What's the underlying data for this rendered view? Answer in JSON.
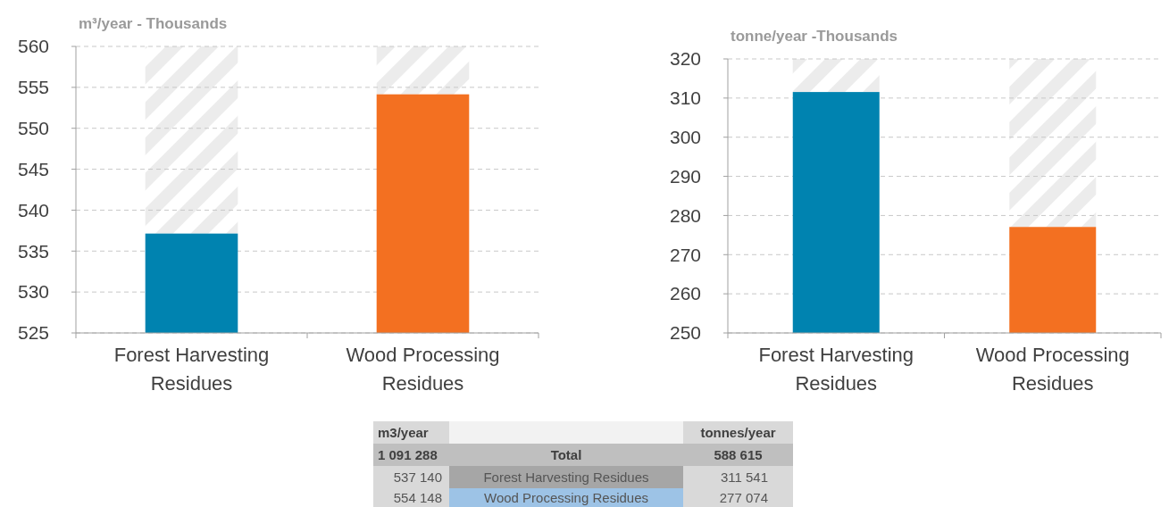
{
  "chart_data": [
    {
      "type": "bar",
      "ylabel": "m³/year - Thousands",
      "categories": [
        "Forest Harvesting Residues",
        "Wood Processing Residues"
      ],
      "grid": "y",
      "ylim": [
        525,
        560
      ],
      "yticks": [
        525,
        530,
        535,
        540,
        545,
        550,
        555,
        560
      ],
      "series": [
        {
          "colors": [
            "#0083b0",
            "#f37021"
          ],
          "values": [
            537.14,
            554.148
          ]
        }
      ]
    },
    {
      "type": "bar",
      "ylabel": "tonne/year -Thousands",
      "categories": [
        "Forest Harvesting Residues",
        "Wood Processing Residues"
      ],
      "grid": "y",
      "ylim": [
        250,
        320
      ],
      "yticks": [
        250,
        260,
        270,
        280,
        290,
        300,
        310,
        320
      ],
      "series": [
        {
          "colors": [
            "#0083b0",
            "#f37021"
          ],
          "values": [
            311.541,
            277.074
          ]
        }
      ]
    },
    {
      "type": "other",
      "annotations": [
        "m3/year",
        "tonnes/year",
        "1 091 288",
        "Total",
        "588 615",
        "537 140",
        "Forest Harvesting Residues",
        "311 541",
        "554 148",
        "Wood Processing Residues",
        "277 074"
      ]
    }
  ]
}
